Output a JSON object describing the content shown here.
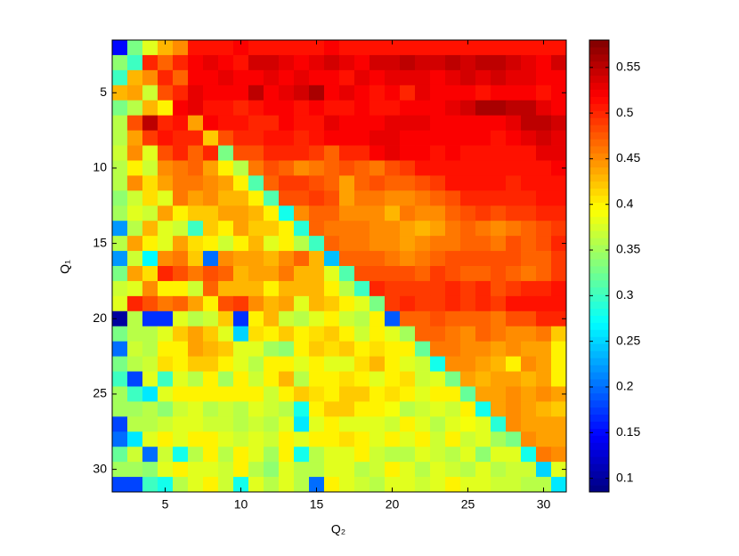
{
  "chart_data": {
    "type": "heatmap",
    "colormap": "jet",
    "y_reversed": true,
    "xlabel": "Q₂",
    "ylabel": "Q₁",
    "x": [
      2,
      3,
      4,
      5,
      6,
      7,
      8,
      9,
      10,
      11,
      12,
      13,
      14,
      15,
      16,
      17,
      18,
      19,
      20,
      21,
      22,
      23,
      24,
      25,
      26,
      27,
      28,
      29,
      30,
      31
    ],
    "y": [
      2,
      3,
      4,
      5,
      6,
      7,
      8,
      9,
      10,
      11,
      12,
      13,
      14,
      15,
      16,
      17,
      18,
      19,
      20,
      21,
      22,
      23,
      24,
      25,
      26,
      27,
      28,
      29,
      30,
      31
    ],
    "xlim": [
      1.5,
      31.5
    ],
    "ylim": [
      1.5,
      31.5
    ],
    "xticks": [
      5,
      10,
      15,
      20,
      25,
      30
    ],
    "yticks": [
      5,
      10,
      15,
      20,
      25,
      30
    ],
    "clim": [
      0.085,
      0.58
    ],
    "cticks": [
      0.1,
      0.15,
      0.2,
      0.25,
      0.3,
      0.35,
      0.4,
      0.45,
      0.5,
      0.55
    ],
    "z": [
      [
        0.15,
        0.33,
        0.38,
        0.43,
        0.45,
        0.51,
        0.51,
        0.51,
        0.52,
        0.51,
        0.51,
        0.51,
        0.51,
        0.51,
        0.52,
        0.51,
        0.51,
        0.51,
        0.51,
        0.51,
        0.51,
        0.51,
        0.51,
        0.51,
        0.51,
        0.51,
        0.51,
        0.51,
        0.51,
        0.51
      ],
      [
        0.34,
        0.3,
        0.5,
        0.47,
        0.5,
        0.52,
        0.53,
        0.52,
        0.51,
        0.54,
        0.54,
        0.53,
        0.52,
        0.53,
        0.54,
        0.53,
        0.52,
        0.54,
        0.54,
        0.55,
        0.54,
        0.54,
        0.55,
        0.54,
        0.55,
        0.55,
        0.54,
        0.53,
        0.52,
        0.54
      ],
      [
        0.3,
        0.43,
        0.45,
        0.5,
        0.47,
        0.52,
        0.52,
        0.53,
        0.52,
        0.52,
        0.53,
        0.52,
        0.53,
        0.52,
        0.52,
        0.51,
        0.53,
        0.52,
        0.53,
        0.53,
        0.53,
        0.52,
        0.53,
        0.54,
        0.53,
        0.54,
        0.53,
        0.53,
        0.52,
        0.52
      ],
      [
        0.43,
        0.44,
        0.37,
        0.48,
        0.5,
        0.53,
        0.52,
        0.52,
        0.52,
        0.55,
        0.52,
        0.53,
        0.54,
        0.56,
        0.52,
        0.53,
        0.52,
        0.51,
        0.52,
        0.5,
        0.53,
        0.52,
        0.52,
        0.52,
        0.51,
        0.52,
        0.52,
        0.52,
        0.51,
        0.52
      ],
      [
        0.33,
        0.36,
        0.43,
        0.4,
        0.52,
        0.53,
        0.51,
        0.51,
        0.5,
        0.51,
        0.52,
        0.52,
        0.51,
        0.52,
        0.51,
        0.51,
        0.52,
        0.51,
        0.51,
        0.52,
        0.52,
        0.52,
        0.53,
        0.54,
        0.56,
        0.56,
        0.55,
        0.55,
        0.53,
        0.52
      ],
      [
        0.36,
        0.48,
        0.55,
        0.5,
        0.51,
        0.44,
        0.52,
        0.51,
        0.51,
        0.5,
        0.5,
        0.52,
        0.51,
        0.51,
        0.53,
        0.52,
        0.52,
        0.52,
        0.53,
        0.53,
        0.53,
        0.52,
        0.52,
        0.52,
        0.52,
        0.52,
        0.53,
        0.55,
        0.55,
        0.54
      ],
      [
        0.36,
        0.44,
        0.49,
        0.51,
        0.5,
        0.5,
        0.42,
        0.48,
        0.5,
        0.5,
        0.51,
        0.51,
        0.5,
        0.51,
        0.52,
        0.52,
        0.52,
        0.53,
        0.53,
        0.52,
        0.52,
        0.52,
        0.52,
        0.52,
        0.52,
        0.51,
        0.52,
        0.53,
        0.54,
        0.53
      ],
      [
        0.37,
        0.45,
        0.38,
        0.48,
        0.5,
        0.47,
        0.5,
        0.33,
        0.48,
        0.48,
        0.5,
        0.5,
        0.5,
        0.49,
        0.47,
        0.5,
        0.5,
        0.52,
        0.53,
        0.52,
        0.52,
        0.51,
        0.52,
        0.51,
        0.51,
        0.51,
        0.51,
        0.51,
        0.53,
        0.53
      ],
      [
        0.36,
        0.4,
        0.37,
        0.45,
        0.46,
        0.47,
        0.44,
        0.4,
        0.36,
        0.46,
        0.48,
        0.47,
        0.45,
        0.46,
        0.47,
        0.48,
        0.47,
        0.46,
        0.48,
        0.49,
        0.51,
        0.51,
        0.51,
        0.51,
        0.51,
        0.51,
        0.51,
        0.51,
        0.51,
        0.52
      ],
      [
        0.36,
        0.45,
        0.41,
        0.44,
        0.46,
        0.46,
        0.45,
        0.44,
        0.4,
        0.31,
        0.47,
        0.49,
        0.49,
        0.48,
        0.47,
        0.44,
        0.47,
        0.48,
        0.47,
        0.47,
        0.48,
        0.49,
        0.51,
        0.51,
        0.51,
        0.51,
        0.5,
        0.51,
        0.51,
        0.51
      ],
      [
        0.34,
        0.37,
        0.41,
        0.38,
        0.46,
        0.44,
        0.45,
        0.43,
        0.43,
        0.4,
        0.31,
        0.48,
        0.48,
        0.49,
        0.48,
        0.44,
        0.46,
        0.46,
        0.45,
        0.45,
        0.46,
        0.47,
        0.48,
        0.5,
        0.5,
        0.5,
        0.5,
        0.5,
        0.51,
        0.51
      ],
      [
        0.35,
        0.38,
        0.37,
        0.44,
        0.4,
        0.42,
        0.42,
        0.44,
        0.44,
        0.43,
        0.4,
        0.28,
        0.45,
        0.47,
        0.47,
        0.45,
        0.45,
        0.45,
        0.43,
        0.46,
        0.45,
        0.45,
        0.47,
        0.48,
        0.49,
        0.48,
        0.49,
        0.49,
        0.5,
        0.5
      ],
      [
        0.22,
        0.36,
        0.43,
        0.38,
        0.37,
        0.3,
        0.42,
        0.4,
        0.44,
        0.42,
        0.42,
        0.4,
        0.29,
        0.47,
        0.46,
        0.46,
        0.46,
        0.45,
        0.45,
        0.44,
        0.43,
        0.44,
        0.46,
        0.47,
        0.46,
        0.45,
        0.46,
        0.47,
        0.48,
        0.49
      ],
      [
        0.36,
        0.44,
        0.4,
        0.38,
        0.44,
        0.41,
        0.4,
        0.37,
        0.4,
        0.43,
        0.38,
        0.4,
        0.36,
        0.3,
        0.47,
        0.46,
        0.46,
        0.45,
        0.45,
        0.44,
        0.45,
        0.46,
        0.46,
        0.47,
        0.47,
        0.46,
        0.48,
        0.47,
        0.48,
        0.5
      ],
      [
        0.22,
        0.37,
        0.27,
        0.45,
        0.46,
        0.42,
        0.2,
        0.45,
        0.44,
        0.44,
        0.43,
        0.45,
        0.47,
        0.43,
        0.24,
        0.47,
        0.47,
        0.47,
        0.46,
        0.45,
        0.46,
        0.47,
        0.48,
        0.48,
        0.48,
        0.48,
        0.48,
        0.47,
        0.47,
        0.49
      ],
      [
        0.33,
        0.44,
        0.41,
        0.5,
        0.48,
        0.46,
        0.48,
        0.47,
        0.43,
        0.44,
        0.44,
        0.46,
        0.43,
        0.43,
        0.38,
        0.31,
        0.48,
        0.48,
        0.48,
        0.48,
        0.47,
        0.49,
        0.48,
        0.47,
        0.47,
        0.48,
        0.47,
        0.46,
        0.47,
        0.49
      ],
      [
        0.37,
        0.38,
        0.45,
        0.4,
        0.4,
        0.37,
        0.47,
        0.43,
        0.43,
        0.43,
        0.4,
        0.43,
        0.43,
        0.43,
        0.4,
        0.36,
        0.3,
        0.5,
        0.49,
        0.49,
        0.49,
        0.49,
        0.5,
        0.49,
        0.5,
        0.48,
        0.49,
        0.5,
        0.5,
        0.51
      ],
      [
        0.38,
        0.5,
        0.48,
        0.46,
        0.47,
        0.44,
        0.4,
        0.48,
        0.49,
        0.45,
        0.43,
        0.44,
        0.38,
        0.43,
        0.42,
        0.4,
        0.38,
        0.33,
        0.49,
        0.5,
        0.49,
        0.49,
        0.5,
        0.49,
        0.5,
        0.49,
        0.51,
        0.51,
        0.51,
        0.51
      ],
      [
        0.1,
        0.36,
        0.17,
        0.17,
        0.38,
        0.36,
        0.37,
        0.42,
        0.17,
        0.4,
        0.43,
        0.37,
        0.36,
        0.38,
        0.4,
        0.37,
        0.36,
        0.4,
        0.19,
        0.47,
        0.47,
        0.48,
        0.47,
        0.47,
        0.47,
        0.46,
        0.48,
        0.48,
        0.5,
        0.5
      ],
      [
        0.33,
        0.36,
        0.36,
        0.38,
        0.42,
        0.44,
        0.42,
        0.38,
        0.25,
        0.41,
        0.4,
        0.42,
        0.4,
        0.41,
        0.42,
        0.4,
        0.37,
        0.4,
        0.38,
        0.35,
        0.47,
        0.47,
        0.46,
        0.45,
        0.47,
        0.46,
        0.45,
        0.45,
        0.46,
        0.42
      ],
      [
        0.2,
        0.37,
        0.36,
        0.4,
        0.4,
        0.44,
        0.43,
        0.42,
        0.38,
        0.38,
        0.35,
        0.34,
        0.4,
        0.42,
        0.41,
        0.42,
        0.4,
        0.41,
        0.4,
        0.4,
        0.32,
        0.46,
        0.46,
        0.45,
        0.45,
        0.44,
        0.45,
        0.44,
        0.44,
        0.4
      ],
      [
        0.33,
        0.36,
        0.37,
        0.41,
        0.4,
        0.42,
        0.42,
        0.4,
        0.38,
        0.36,
        0.4,
        0.4,
        0.38,
        0.4,
        0.38,
        0.38,
        0.41,
        0.43,
        0.4,
        0.38,
        0.37,
        0.28,
        0.45,
        0.45,
        0.44,
        0.43,
        0.4,
        0.45,
        0.44,
        0.4
      ],
      [
        0.3,
        0.18,
        0.38,
        0.3,
        0.38,
        0.36,
        0.4,
        0.35,
        0.4,
        0.37,
        0.4,
        0.43,
        0.36,
        0.4,
        0.4,
        0.41,
        0.4,
        0.38,
        0.4,
        0.41,
        0.37,
        0.38,
        0.33,
        0.44,
        0.43,
        0.44,
        0.44,
        0.43,
        0.44,
        0.4
      ],
      [
        0.35,
        0.3,
        0.26,
        0.38,
        0.4,
        0.4,
        0.4,
        0.4,
        0.4,
        0.4,
        0.37,
        0.4,
        0.42,
        0.41,
        0.4,
        0.42,
        0.42,
        0.4,
        0.41,
        0.4,
        0.38,
        0.4,
        0.4,
        0.32,
        0.44,
        0.44,
        0.45,
        0.44,
        0.45,
        0.44
      ],
      [
        0.35,
        0.35,
        0.36,
        0.34,
        0.37,
        0.38,
        0.36,
        0.37,
        0.36,
        0.38,
        0.37,
        0.36,
        0.28,
        0.4,
        0.42,
        0.42,
        0.4,
        0.4,
        0.39,
        0.36,
        0.37,
        0.38,
        0.37,
        0.4,
        0.28,
        0.44,
        0.45,
        0.44,
        0.43,
        0.42
      ],
      [
        0.18,
        0.36,
        0.36,
        0.37,
        0.38,
        0.38,
        0.37,
        0.37,
        0.36,
        0.37,
        0.36,
        0.38,
        0.26,
        0.38,
        0.4,
        0.38,
        0.38,
        0.38,
        0.37,
        0.4,
        0.38,
        0.36,
        0.38,
        0.39,
        0.38,
        0.29,
        0.45,
        0.44,
        0.44,
        0.44
      ],
      [
        0.2,
        0.26,
        0.38,
        0.4,
        0.38,
        0.4,
        0.4,
        0.38,
        0.37,
        0.38,
        0.37,
        0.4,
        0.38,
        0.4,
        0.4,
        0.41,
        0.4,
        0.38,
        0.4,
        0.38,
        0.4,
        0.37,
        0.4,
        0.37,
        0.38,
        0.35,
        0.33,
        0.45,
        0.44,
        0.44
      ],
      [
        0.32,
        0.37,
        0.2,
        0.37,
        0.28,
        0.36,
        0.4,
        0.36,
        0.4,
        0.38,
        0.35,
        0.4,
        0.28,
        0.36,
        0.38,
        0.38,
        0.4,
        0.37,
        0.36,
        0.36,
        0.38,
        0.37,
        0.36,
        0.38,
        0.34,
        0.38,
        0.38,
        0.28,
        0.46,
        0.45
      ],
      [
        0.35,
        0.35,
        0.34,
        0.38,
        0.4,
        0.38,
        0.38,
        0.37,
        0.4,
        0.36,
        0.34,
        0.38,
        0.36,
        0.36,
        0.38,
        0.38,
        0.36,
        0.37,
        0.4,
        0.38,
        0.36,
        0.38,
        0.37,
        0.36,
        0.38,
        0.36,
        0.37,
        0.37,
        0.25,
        0.38
      ],
      [
        0.18,
        0.18,
        0.3,
        0.28,
        0.36,
        0.38,
        0.4,
        0.37,
        0.28,
        0.38,
        0.36,
        0.38,
        0.36,
        0.2,
        0.4,
        0.38,
        0.37,
        0.36,
        0.38,
        0.38,
        0.37,
        0.38,
        0.4,
        0.38,
        0.38,
        0.37,
        0.37,
        0.36,
        0.36,
        0.26
      ]
    ]
  }
}
